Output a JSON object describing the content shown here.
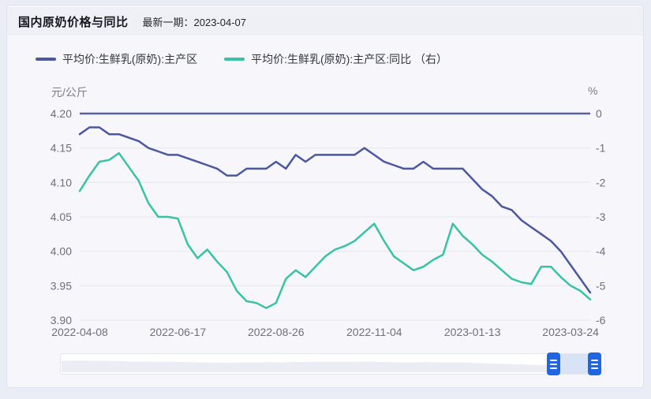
{
  "header": {
    "title": "国内原奶价格与同比",
    "latest": "最新一期：2023-04-07"
  },
  "legend": {
    "items": [
      {
        "label": "平均价:生鲜乳(原奶):主产区",
        "color": "#4c57a2"
      },
      {
        "label": "平均价:生鲜乳(原奶):主产区:同比 （右）",
        "color": "#38c3a5"
      }
    ]
  },
  "colors": {
    "accent_blue": "#2066e2",
    "price_line": "#4c57a2",
    "yoy_line": "#38c3a5",
    "zero_line": "#575fa0",
    "grid_line": "#e6e6f0",
    "tick_text": "#6f6f7d"
  },
  "chart_data": {
    "type": "line",
    "title": "国内原奶价格与同比",
    "x": {
      "count": 53,
      "labels": [
        "2022-04-08",
        "2022-06-17",
        "2022-08-26",
        "2022-11-04",
        "2023-01-13",
        "2023-03-24"
      ],
      "label_positions": [
        0,
        10,
        20,
        30,
        40,
        50
      ]
    },
    "axes": {
      "left": {
        "name": "元/公斤",
        "min": 3.9,
        "max": 4.2,
        "ticks": [
          "4.20",
          "4.15",
          "4.10",
          "4.05",
          "4.00",
          "3.95",
          "3.90"
        ]
      },
      "right": {
        "name": "%",
        "min": -6,
        "max": 0,
        "ticks": [
          "0",
          "-1",
          "-2",
          "-3",
          "-4",
          "-5",
          "-6"
        ]
      }
    },
    "grid": true,
    "legend_position": "top-left",
    "reference_line": {
      "axis": "right",
      "value": 0,
      "color": "#575fa0"
    },
    "series": [
      {
        "name": "平均价:生鲜乳(原奶):主产区",
        "yaxis": "left",
        "color": "#4c57a2",
        "values": [
          4.17,
          4.18,
          4.18,
          4.17,
          4.17,
          4.165,
          4.16,
          4.15,
          4.145,
          4.14,
          4.14,
          4.135,
          4.13,
          4.125,
          4.12,
          4.11,
          4.11,
          4.12,
          4.12,
          4.12,
          4.13,
          4.12,
          4.14,
          4.13,
          4.14,
          4.14,
          4.14,
          4.14,
          4.14,
          4.15,
          4.14,
          4.13,
          4.125,
          4.12,
          4.12,
          4.13,
          4.12,
          4.12,
          4.12,
          4.12,
          4.105,
          4.09,
          4.08,
          4.065,
          4.06,
          4.045,
          4.035,
          4.025,
          4.015,
          4.0,
          3.98,
          3.96,
          3.94
        ]
      },
      {
        "name": "平均价:生鲜乳(原奶):主产区:同比（右）",
        "yaxis": "right",
        "color": "#38c3a5",
        "values": [
          -2.25,
          -1.8,
          -1.4,
          -1.35,
          -1.15,
          -1.55,
          -1.95,
          -2.6,
          -3.0,
          -3.0,
          -3.05,
          -3.8,
          -4.2,
          -3.95,
          -4.3,
          -4.6,
          -5.15,
          -5.45,
          -5.5,
          -5.65,
          -5.5,
          -4.8,
          -4.55,
          -4.75,
          -4.45,
          -4.15,
          -3.95,
          -3.85,
          -3.7,
          -3.45,
          -3.2,
          -3.7,
          -4.15,
          -4.35,
          -4.55,
          -4.45,
          -4.25,
          -4.1,
          -3.2,
          -3.55,
          -3.8,
          -4.1,
          -4.3,
          -4.55,
          -4.8,
          -4.9,
          -4.95,
          -4.45,
          -4.45,
          -4.75,
          -5.0,
          -5.15,
          -5.4
        ]
      }
    ]
  },
  "slider": {
    "range_start_pct": 90.6,
    "range_end_pct": 98.1,
    "handle_icon": "grip-lines-icon"
  }
}
